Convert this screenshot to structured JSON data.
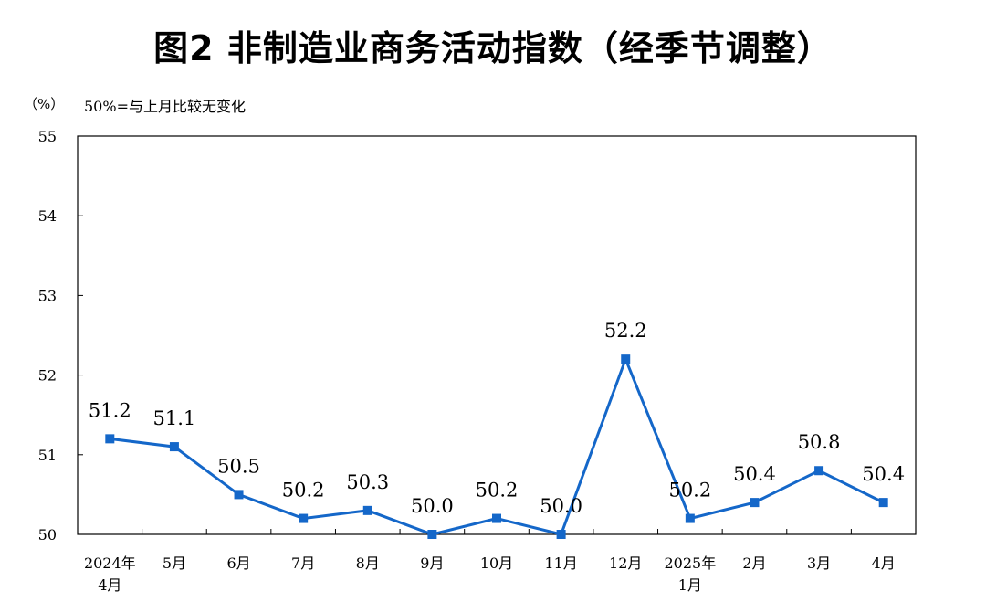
{
  "title": "图2  非制造业商务活动指数（经季节调整）",
  "unit_label": "（%）",
  "note": "50%=与上月比较无变化",
  "colors": {
    "line": "#1467c9",
    "axis": "#000000"
  },
  "chart_data": {
    "type": "line",
    "title": "图2  非制造业商务活动指数（经季节调整）",
    "ylabel": "（%）",
    "ylim": [
      50,
      55
    ],
    "yticks": [
      "50",
      "51",
      "52",
      "53",
      "54",
      "55"
    ],
    "categories": [
      [
        "2024年",
        "4月"
      ],
      [
        "5月"
      ],
      [
        "6月"
      ],
      [
        "7月"
      ],
      [
        "8月"
      ],
      [
        "9月"
      ],
      [
        "10月"
      ],
      [
        "11月"
      ],
      [
        "12月"
      ],
      [
        "2025年",
        "1月"
      ],
      [
        "2月"
      ],
      [
        "3月"
      ],
      [
        "4月"
      ]
    ],
    "series": [
      {
        "values": [
          51.2,
          51.1,
          50.5,
          50.2,
          50.3,
          50.0,
          50.2,
          50.0,
          52.2,
          50.2,
          50.4,
          50.8,
          50.4
        ],
        "labels": [
          "51.2",
          "51.1",
          "50.5",
          "50.2",
          "50.3",
          "50.0",
          "50.2",
          "50.0",
          "52.2",
          "50.2",
          "50.4",
          "50.8",
          "50.4"
        ]
      }
    ],
    "grid": false,
    "legend": "none"
  }
}
